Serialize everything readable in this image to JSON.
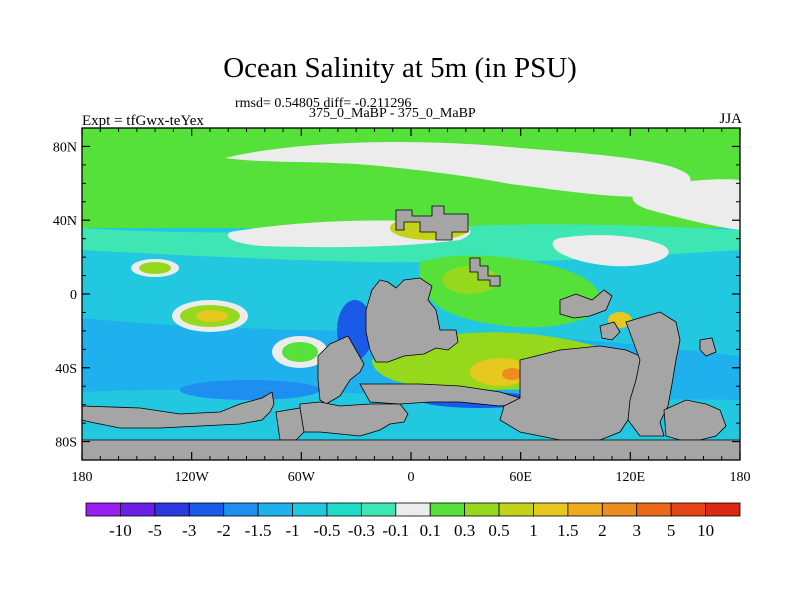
{
  "chart_data": {
    "type": "heatmap",
    "title": "Ocean Salinity at 5m (in PSU)",
    "stats_text": "rmsd= 0.54805 diff= -0.211296",
    "subtitle": "375_0_MaBP - 375_0_MaBP",
    "experiment_label": "Expt = tfGwx-teYex",
    "season_label": "JJA",
    "xlim": [
      -180,
      180
    ],
    "ylim": [
      -90,
      90
    ],
    "x_ticks": [
      {
        "value": -180,
        "label": "180"
      },
      {
        "value": -120,
        "label": "120W"
      },
      {
        "value": -60,
        "label": "60W"
      },
      {
        "value": 0,
        "label": "0"
      },
      {
        "value": 60,
        "label": "60E"
      },
      {
        "value": 120,
        "label": "120E"
      },
      {
        "value": 180,
        "label": "180"
      }
    ],
    "y_ticks": [
      {
        "value": 80,
        "label": "80N"
      },
      {
        "value": 40,
        "label": "40N"
      },
      {
        "value": 0,
        "label": "0"
      },
      {
        "value": -40,
        "label": "40S"
      },
      {
        "value": -80,
        "label": "80S"
      }
    ],
    "colorbar": {
      "levels": [
        "-10",
        "-5",
        "-3",
        "-2",
        "-1.5",
        "-1",
        "-0.5",
        "-0.3",
        "-0.1",
        "0.1",
        "0.3",
        "0.5",
        "1",
        "1.5",
        "2",
        "3",
        "5",
        "10"
      ],
      "colors": [
        "#9a1ef0",
        "#6a1ee6",
        "#2c37e0",
        "#1a5ae8",
        "#1e8ef0",
        "#1fb0ee",
        "#22c8e0",
        "#1fdcc8",
        "#3ee6b4",
        "#ececec",
        "#56e13a",
        "#96d81c",
        "#c4d21a",
        "#e6c81e",
        "#f0aa1e",
        "#ee8c1e",
        "#ea6818",
        "#e44416",
        "#dc2812"
      ]
    },
    "land_color": "#a5a5a5",
    "no_change_color": "#ececec"
  }
}
